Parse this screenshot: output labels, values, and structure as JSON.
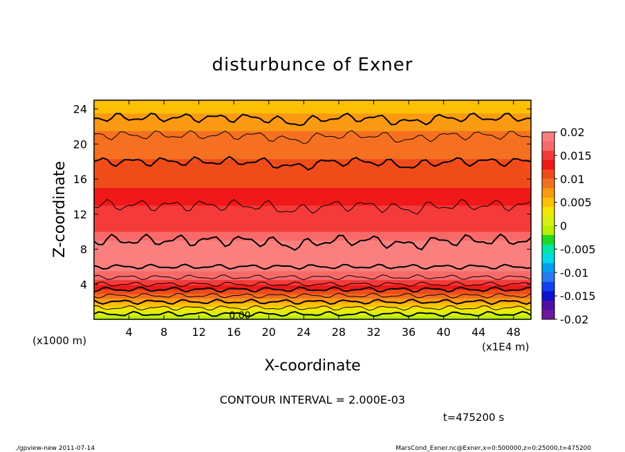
{
  "chart_data": {
    "type": "heatmap",
    "title": "disturbunce of Exner",
    "xlabel": "X-coordinate",
    "ylabel": "Z-coordinate",
    "x_unit_left": "(x1000 m)",
    "x_unit_right": "(x1E4 m)",
    "xlim": [
      0,
      50
    ],
    "ylim": [
      0,
      25
    ],
    "xticks": [
      4,
      8,
      12,
      16,
      20,
      24,
      28,
      32,
      36,
      40,
      44,
      48
    ],
    "yticks": [
      4,
      8,
      12,
      16,
      20,
      24
    ],
    "contour_interval": "CONTOUR INTERVAL = 2.000E-03",
    "time_label": "t=475200 s",
    "contour_label": "0.00",
    "colorbar": {
      "ticks": [
        "0.02",
        "0.015",
        "0.01",
        "0.005",
        "0",
        "-0.005",
        "-0.01",
        "-0.015",
        "-0.02"
      ],
      "values": [
        0.02,
        0.015,
        0.01,
        0.005,
        0,
        -0.005,
        -0.01,
        -0.015,
        -0.02
      ],
      "colors": [
        "#fa8080",
        "#f86a6a",
        "#f53a3a",
        "#f01818",
        "#f04c1a",
        "#f57020",
        "#fa9a12",
        "#fdc005",
        "#f0e800",
        "#d8f010",
        "#b8f000",
        "#20d820",
        "#00e8a0",
        "#00d8e8",
        "#00a0f0",
        "#2878f0",
        "#1040f0",
        "#1010d0",
        "#5010a8",
        "#7018a0"
      ],
      "vmin": -0.02,
      "vmax": 0.02
    },
    "profile": {
      "z": [
        0,
        0.5,
        1,
        1.5,
        2,
        2.5,
        3,
        3.5,
        4,
        4.5,
        5,
        5.5,
        6,
        7,
        8,
        9,
        10,
        12,
        13,
        14,
        16,
        18,
        19,
        20,
        21,
        22,
        23,
        24,
        25
      ],
      "value": [
        -0.0015,
        0.0005,
        0.0025,
        0.0045,
        0.0065,
        0.0085,
        0.0105,
        0.0125,
        0.0145,
        0.016,
        0.017,
        0.018,
        0.0185,
        0.019,
        0.019,
        0.018,
        0.016,
        0.0145,
        0.014,
        0.0125,
        0.0115,
        0.0102,
        0.0095,
        0.009,
        0.0085,
        0.0075,
        0.0065,
        0.0055,
        0.0045
      ]
    },
    "contour_levels_z": [
      0.6,
      1.3,
      2.0,
      2.7,
      3.4,
      4.0,
      4.8,
      6.0,
      9.0,
      13.0,
      18.0,
      21.0,
      23.0
    ],
    "thick_contours_z": [
      0.6,
      2.0,
      3.4,
      6.0,
      9.0,
      18.0,
      23.0
    ]
  },
  "footer": {
    "left": "./gpview-new   2011-07-14",
    "right": "MarsCond_Exner.nc@Exner,x=0:500000,z=0:25000,t=475200"
  }
}
